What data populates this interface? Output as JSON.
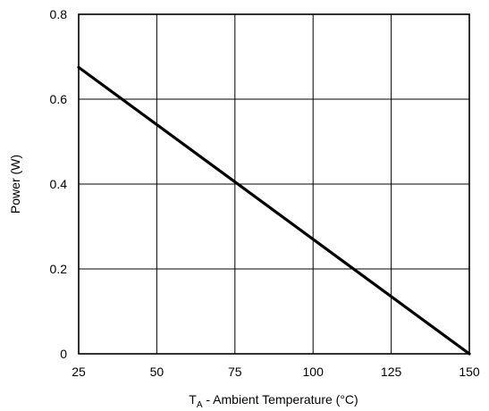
{
  "chart_data": {
    "type": "line",
    "title": "",
    "xlabel": {
      "main": "T",
      "sub": "A",
      "rest": " - Ambient Temperature (°C)"
    },
    "ylabel": "Power (W)",
    "xlim": [
      25,
      150
    ],
    "ylim": [
      0,
      0.8
    ],
    "xticks": [
      25,
      50,
      75,
      100,
      125,
      150
    ],
    "yticks": [
      0,
      0.2,
      0.4,
      0.6,
      0.8
    ],
    "xtick_labels": [
      "25",
      "50",
      "75",
      "100",
      "125",
      "150"
    ],
    "ytick_labels": [
      "0",
      "0.2",
      "0.4",
      "0.6",
      "0.8"
    ],
    "grid": true,
    "legend": "none",
    "series": [
      {
        "color": "#000000",
        "points": [
          {
            "x": 25,
            "y": 0.675
          },
          {
            "x": 150,
            "y": 0
          }
        ]
      }
    ]
  }
}
